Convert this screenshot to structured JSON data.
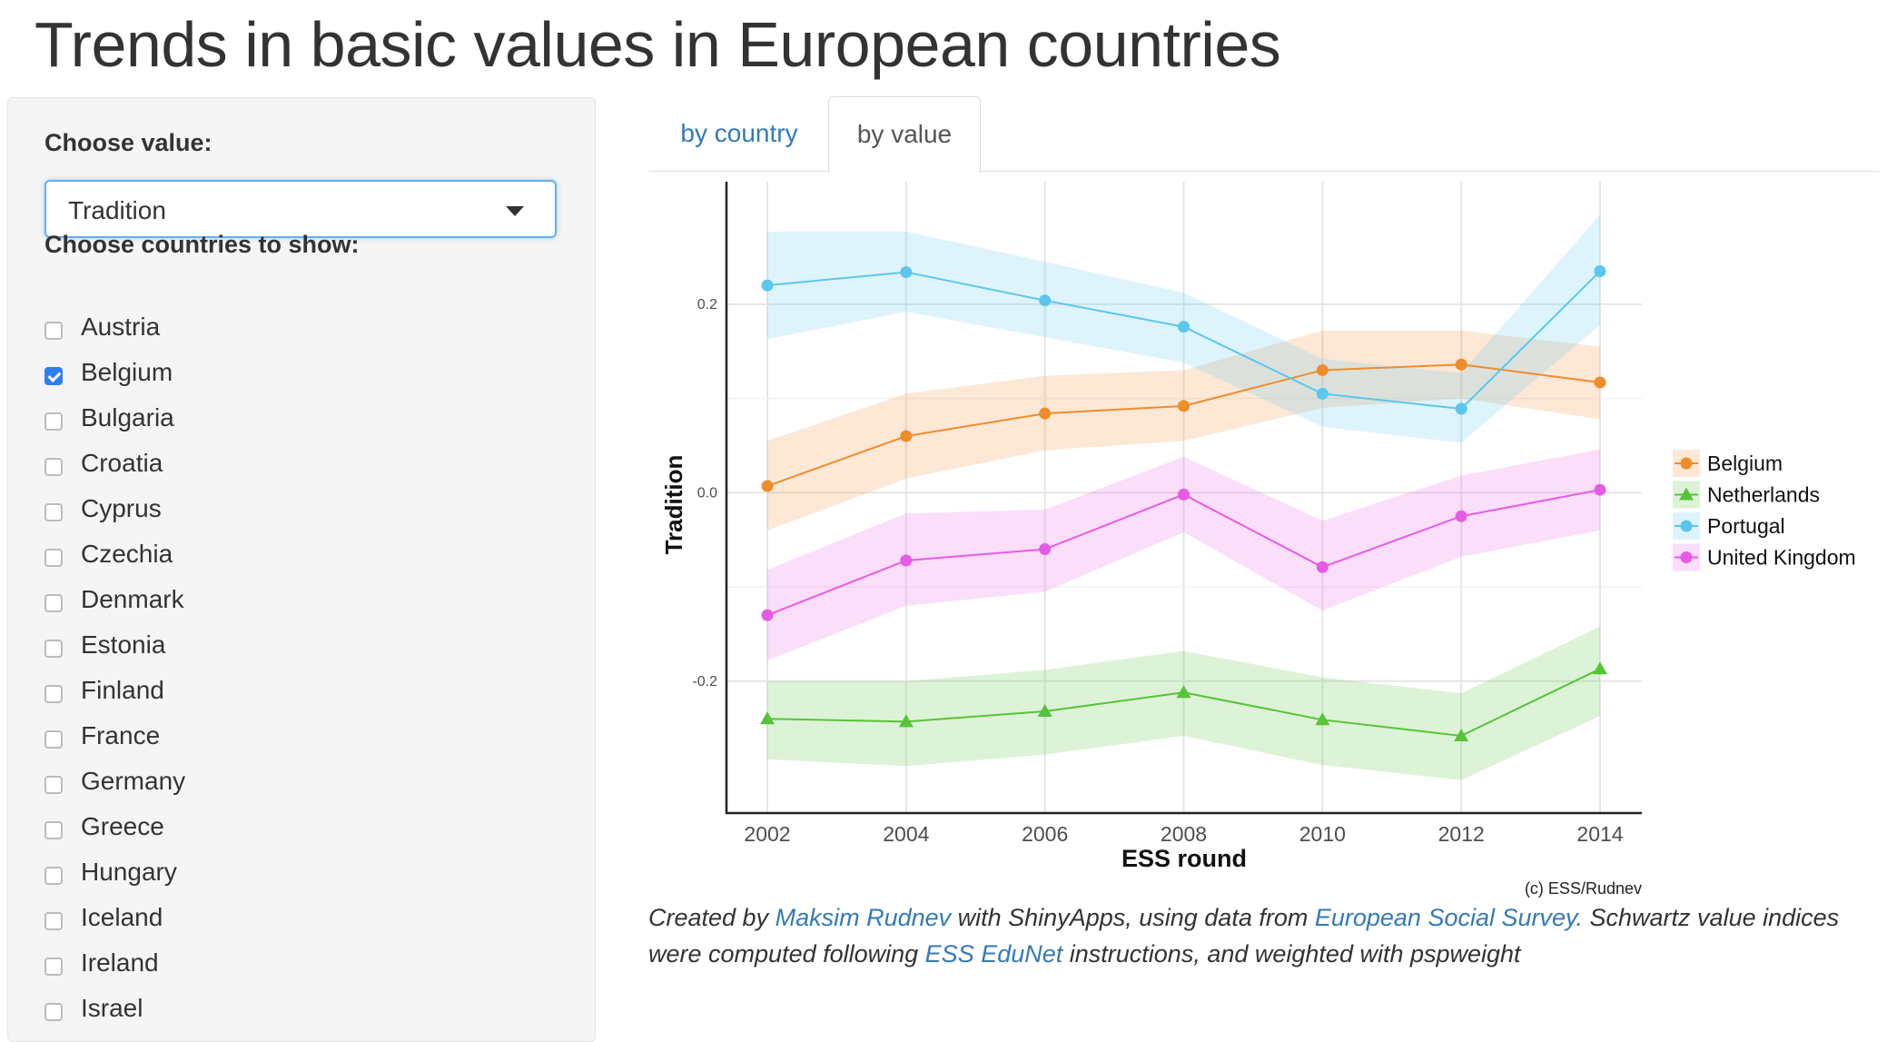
{
  "page": {
    "title": "Trends in basic values in European countries"
  },
  "sidebar": {
    "value_label": "Choose value:",
    "value_selected": "Tradition",
    "countries_label": "Choose countries to show:",
    "countries": [
      {
        "name": "Austria",
        "checked": false
      },
      {
        "name": "Belgium",
        "checked": true
      },
      {
        "name": "Bulgaria",
        "checked": false
      },
      {
        "name": "Croatia",
        "checked": false
      },
      {
        "name": "Cyprus",
        "checked": false
      },
      {
        "name": "Czechia",
        "checked": false
      },
      {
        "name": "Denmark",
        "checked": false
      },
      {
        "name": "Estonia",
        "checked": false
      },
      {
        "name": "Finland",
        "checked": false
      },
      {
        "name": "France",
        "checked": false
      },
      {
        "name": "Germany",
        "checked": false
      },
      {
        "name": "Greece",
        "checked": false
      },
      {
        "name": "Hungary",
        "checked": false
      },
      {
        "name": "Iceland",
        "checked": false
      },
      {
        "name": "Ireland",
        "checked": false
      },
      {
        "name": "Israel",
        "checked": false
      }
    ]
  },
  "tabs": [
    {
      "label": "by country",
      "active": false
    },
    {
      "label": "by value",
      "active": true
    }
  ],
  "chart_data": {
    "type": "line",
    "xlabel": "ESS round",
    "ylabel": "Tradition",
    "x": [
      2002,
      2004,
      2006,
      2008,
      2010,
      2012,
      2014
    ],
    "ylim": [
      -0.34,
      0.33
    ],
    "yticks": [
      -0.2,
      0.0,
      0.2
    ],
    "ytick_labels": [
      "-0.2",
      "0.0",
      "0.2"
    ],
    "grid": true,
    "legend_position": "right",
    "caption": "(c) ESS/Rudnev",
    "series": [
      {
        "name": "Belgium",
        "color": "#ef8c2b",
        "marker": "circle",
        "values": [
          0.007,
          0.06,
          0.084,
          0.092,
          0.13,
          0.136,
          0.117
        ],
        "lower": [
          -0.04,
          0.015,
          0.045,
          0.055,
          0.09,
          0.1,
          0.078
        ],
        "upper": [
          0.055,
          0.105,
          0.124,
          0.13,
          0.172,
          0.172,
          0.155
        ]
      },
      {
        "name": "Netherlands",
        "color": "#55c437",
        "marker": "triangle",
        "values": [
          -0.24,
          -0.243,
          -0.232,
          -0.212,
          -0.241,
          -0.258,
          -0.187
        ],
        "lower": [
          -0.283,
          -0.29,
          -0.278,
          -0.258,
          -0.289,
          -0.305,
          -0.237
        ],
        "upper": [
          -0.2,
          -0.2,
          -0.188,
          -0.168,
          -0.196,
          -0.213,
          -0.142
        ]
      },
      {
        "name": "Portugal",
        "color": "#5bc6ee",
        "marker": "circle",
        "values": [
          0.22,
          0.234,
          0.204,
          0.176,
          0.105,
          0.089,
          0.235
        ],
        "lower": [
          0.163,
          0.192,
          0.165,
          0.138,
          0.07,
          0.053,
          0.178
        ],
        "upper": [
          0.277,
          0.277,
          0.245,
          0.212,
          0.142,
          0.127,
          0.295
        ]
      },
      {
        "name": "United Kingdom",
        "color": "#e65be6",
        "marker": "circle",
        "values": [
          -0.13,
          -0.072,
          -0.06,
          -0.002,
          -0.079,
          -0.025,
          0.003
        ],
        "lower": [
          -0.178,
          -0.12,
          -0.105,
          -0.042,
          -0.125,
          -0.068,
          -0.04
        ],
        "upper": [
          -0.082,
          -0.022,
          -0.018,
          0.038,
          -0.03,
          0.018,
          0.046
        ]
      }
    ]
  },
  "footer": {
    "created_by": "Created by ",
    "author_link": "Maksim Rudnev",
    "with_text": " with ShinyApps, using data from ",
    "ess_link": "European Social Survey.",
    "indices_text": " Schwartz value indices were computed following ",
    "edunet_link": "ESS EduNet",
    "end_text": " instructions, and weighted with pspweight"
  }
}
